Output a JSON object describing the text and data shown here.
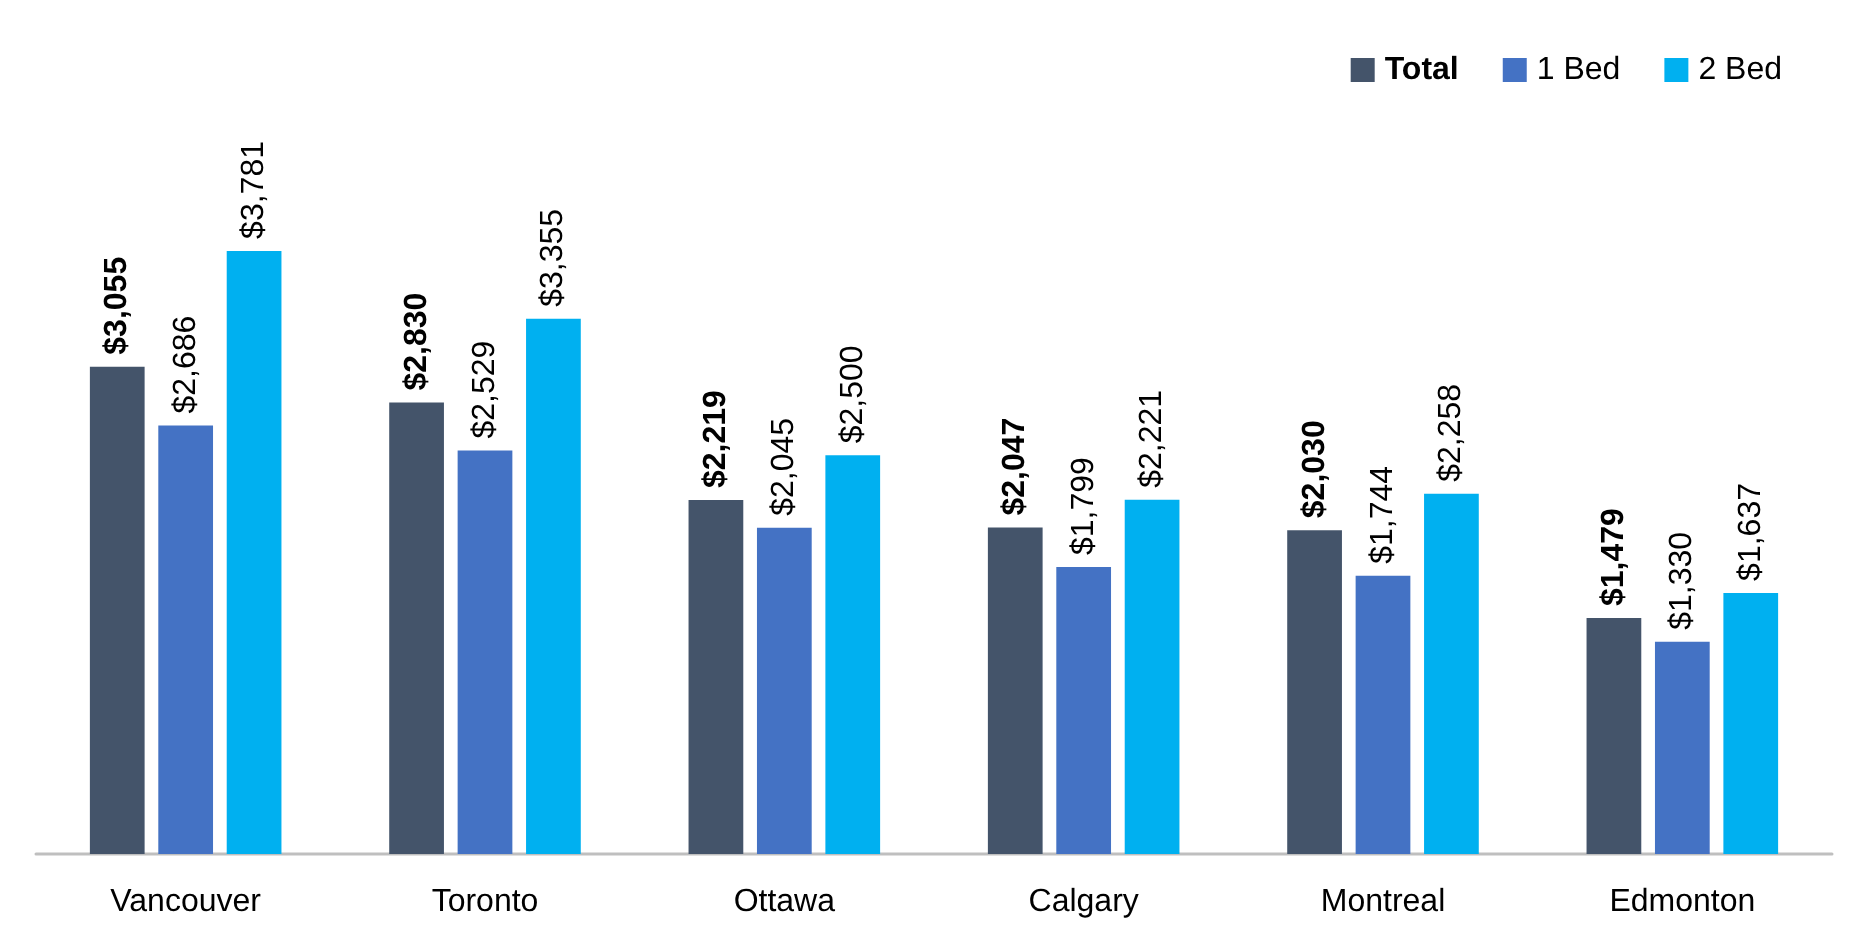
{
  "chart_data": {
    "type": "bar",
    "categories": [
      "Vancouver",
      "Toronto",
      "Ottawa",
      "Calgary",
      "Montreal",
      "Edmonton"
    ],
    "series": [
      {
        "name": "Total",
        "color": "#44546a",
        "values": [
          3055,
          2830,
          2219,
          2047,
          2030,
          1479
        ],
        "value_labels": [
          "$3,055",
          "$2,830",
          "$2,219",
          "$2,047",
          "$2,030",
          "$1,479"
        ]
      },
      {
        "name": "1 Bed",
        "color": "#4472c4",
        "values": [
          2686,
          2529,
          2045,
          1799,
          1744,
          1330
        ],
        "value_labels": [
          "$2,686",
          "$2,529",
          "$2,045",
          "$1,799",
          "$1,744",
          "$1,330"
        ]
      },
      {
        "name": "2 Bed",
        "color": "#00b0f0",
        "values": [
          3781,
          3355,
          2500,
          2221,
          2258,
          1637
        ],
        "value_labels": [
          "$3,781",
          "$3,355",
          "$2,500",
          "$2,221",
          "$2,258",
          "$1,637"
        ]
      }
    ],
    "legend": "top right",
    "grid": false
  }
}
